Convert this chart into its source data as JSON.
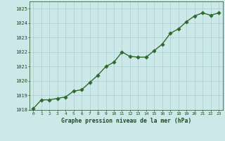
{
  "x": [
    0,
    1,
    2,
    3,
    4,
    5,
    6,
    7,
    8,
    9,
    10,
    11,
    12,
    13,
    14,
    15,
    16,
    17,
    18,
    19,
    20,
    21,
    22,
    23
  ],
  "y": [
    1018.1,
    1018.7,
    1018.7,
    1018.8,
    1018.9,
    1019.3,
    1019.4,
    1019.9,
    1020.4,
    1021.0,
    1021.3,
    1022.0,
    1021.7,
    1021.65,
    1021.65,
    1022.1,
    1022.55,
    1023.3,
    1023.6,
    1024.1,
    1024.5,
    1024.7,
    1024.55,
    1024.7
  ],
  "title": "Graphe pression niveau de la mer (hPa)",
  "ylim": [
    1018,
    1025.5
  ],
  "xlim_left": -0.5,
  "xlim_right": 23.5,
  "yticks": [
    1018,
    1019,
    1020,
    1021,
    1022,
    1023,
    1024,
    1025
  ],
  "xticks": [
    0,
    1,
    2,
    3,
    4,
    5,
    6,
    7,
    8,
    9,
    10,
    11,
    12,
    13,
    14,
    15,
    16,
    17,
    18,
    19,
    20,
    21,
    22,
    23
  ],
  "line_color": "#2d6a2d",
  "marker_color": "#2d6a2d",
  "bg_color": "#cce8e8",
  "grid_color": "#aacece",
  "title_color": "#1a4a1a",
  "tick_color": "#1a4a1a",
  "line_width": 1.0,
  "marker_size": 2.8
}
